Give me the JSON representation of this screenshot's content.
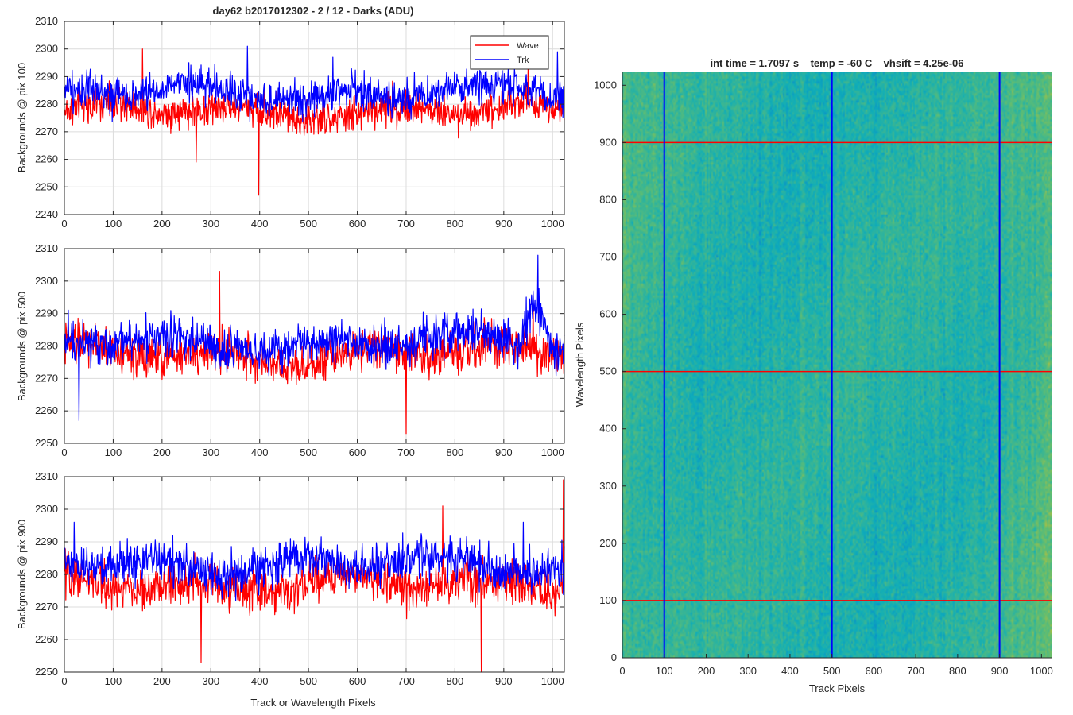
{
  "figure": {
    "title": "day62 b2017012302 - 2 / 12 - Darks (ADU)",
    "shared_xlabel": "Track or Wavelength Pixels"
  },
  "colors": {
    "wave": "#ff0000",
    "trk": "#0000ff",
    "grid": "#dcdcdc",
    "axis": "#262626"
  },
  "chart_data": [
    {
      "type": "line",
      "ylabel": "Backgrounds @ pix 100",
      "xlim": [
        0,
        1024
      ],
      "ylim": [
        2240,
        2310
      ],
      "xticks": [
        0,
        100,
        200,
        300,
        400,
        500,
        600,
        700,
        800,
        900,
        1000
      ],
      "yticks": [
        2240,
        2250,
        2260,
        2270,
        2280,
        2290,
        2300,
        2310
      ],
      "legend": {
        "placement": "top-right",
        "entries": [
          "Wave",
          "Trk"
        ]
      },
      "grid": true,
      "series": [
        {
          "name": "Wave",
          "color": "#ff0000",
          "mean": 2277.5,
          "noise": 5,
          "spikes": [
            [
              398,
              2247
            ],
            [
              270,
              2259
            ],
            [
              950,
              2295
            ],
            [
              160,
              2300
            ]
          ]
        },
        {
          "name": "Trk",
          "color": "#0000ff",
          "mean": 2284,
          "noise": 5,
          "spikes": [
            [
              375,
              2301
            ],
            [
              1010,
              2299
            ],
            [
              550,
              2297
            ]
          ]
        }
      ]
    },
    {
      "type": "line",
      "ylabel": "Backgrounds @ pix 500",
      "xlim": [
        0,
        1024
      ],
      "ylim": [
        2250,
        2310
      ],
      "xticks": [
        0,
        100,
        200,
        300,
        400,
        500,
        600,
        700,
        800,
        900,
        1000
      ],
      "yticks": [
        2250,
        2260,
        2270,
        2280,
        2290,
        2300,
        2310
      ],
      "grid": true,
      "series": [
        {
          "name": "Wave",
          "color": "#ff0000",
          "mean": 2277.5,
          "noise": 5,
          "spikes": [
            [
              318,
              2303
            ],
            [
              700,
              2253
            ],
            [
              960,
              2296
            ]
          ]
        },
        {
          "name": "Trk",
          "color": "#0000ff",
          "mean": 2281,
          "noise": 5,
          "bump": [
            930,
            1000,
            12
          ],
          "spikes": [
            [
              970,
              2308
            ],
            [
              30,
              2257
            ]
          ]
        }
      ]
    },
    {
      "type": "line",
      "ylabel": "Backgrounds @ pix 900",
      "xlim": [
        0,
        1024
      ],
      "ylim": [
        2250,
        2310
      ],
      "xticks": [
        0,
        100,
        200,
        300,
        400,
        500,
        600,
        700,
        800,
        900,
        1000
      ],
      "yticks": [
        2250,
        2260,
        2270,
        2280,
        2290,
        2300,
        2310
      ],
      "grid": true,
      "series": [
        {
          "name": "Wave",
          "color": "#ff0000",
          "mean": 2277,
          "noise": 5,
          "spikes": [
            [
              854,
              2250
            ],
            [
              1022,
              2309
            ],
            [
              775,
              2301
            ],
            [
              280,
              2253
            ]
          ]
        },
        {
          "name": "Trk",
          "color": "#0000ff",
          "mean": 2283,
          "noise": 5,
          "spikes": [
            [
              940,
              2296
            ],
            [
              20,
              2296
            ]
          ]
        }
      ]
    },
    {
      "type": "heatmap",
      "title": "int time = 1.7097 s    temp = -60 C    vhsift = 4.25e-06",
      "xlabel": "Track Pixels",
      "ylabel": "Wavelength Pixels",
      "xlim": [
        0,
        1024
      ],
      "ylim": [
        0,
        1024
      ],
      "xticks": [
        0,
        100,
        200,
        300,
        400,
        500,
        600,
        700,
        800,
        900,
        1000
      ],
      "yticks": [
        0,
        100,
        200,
        300,
        400,
        500,
        600,
        700,
        800,
        900,
        1000
      ],
      "colormap": "parula",
      "vertical_lines": {
        "x": [
          100,
          500,
          900
        ],
        "color": "#0000ff"
      },
      "horizontal_lines": {
        "y": [
          100,
          500,
          900
        ],
        "color": "#ff0000"
      }
    }
  ]
}
